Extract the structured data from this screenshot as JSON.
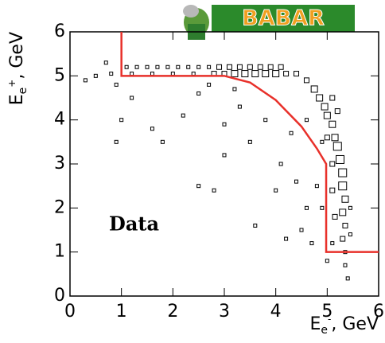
{
  "chart_data": {
    "type": "scatter",
    "logo": "BABAR",
    "annotation": "Data",
    "x_label": {
      "main": "E",
      "sub": "e",
      "sup": "-",
      "rest": ", GeV"
    },
    "y_label": {
      "main": "E",
      "sub": "e",
      "sup": "+",
      "rest": ", GeV"
    },
    "xlim": [
      0,
      6
    ],
    "ylim": [
      0,
      6
    ],
    "xticks": [
      0,
      1,
      2,
      3,
      4,
      5,
      6
    ],
    "yticks": [
      0,
      1,
      2,
      3,
      4,
      5,
      6
    ],
    "color": "#000000",
    "x": [
      1.1,
      1.3,
      1.5,
      1.7,
      1.9,
      2.1,
      2.3,
      2.5,
      2.7,
      2.9,
      3.1,
      3.3,
      3.5,
      3.7,
      3.9,
      4.1,
      0.8,
      1.2,
      1.6,
      2.0,
      2.4,
      2.8,
      3.0,
      3.2,
      3.4,
      3.6,
      3.8,
      4.0,
      4.2,
      4.4,
      0.3,
      0.5,
      0.7,
      0.9,
      1.2,
      1.0,
      0.9,
      1.6,
      1.8,
      2.2,
      2.5,
      2.5,
      2.8,
      3.0,
      3.0,
      3.3,
      3.5,
      3.6,
      3.8,
      4.0,
      4.1,
      4.2,
      4.3,
      4.4,
      4.5,
      4.6,
      4.8,
      4.7,
      4.6,
      3.2,
      2.7,
      4.6,
      4.75,
      4.85,
      4.95,
      5.0,
      5.1,
      5.15,
      5.2,
      5.25,
      5.3,
      5.3,
      5.35,
      5.3,
      5.35,
      5.3,
      5.35,
      5.35,
      5.4,
      5.1,
      5.2,
      5.0,
      5.1,
      5.1,
      5.15,
      5.1,
      5.0,
      5.45,
      5.45,
      4.9,
      4.9
    ],
    "y": [
      5.2,
      5.2,
      5.2,
      5.2,
      5.2,
      5.2,
      5.2,
      5.2,
      5.2,
      5.2,
      5.2,
      5.2,
      5.2,
      5.2,
      5.2,
      5.2,
      5.05,
      5.05,
      5.05,
      5.05,
      5.05,
      5.05,
      5.05,
      5.05,
      5.05,
      5.05,
      5.05,
      5.05,
      5.05,
      5.05,
      4.9,
      5.0,
      5.3,
      4.8,
      4.5,
      4.0,
      3.5,
      3.8,
      3.5,
      4.1,
      4.6,
      2.5,
      2.4,
      3.9,
      3.2,
      4.3,
      3.5,
      1.6,
      4.0,
      2.4,
      3.0,
      1.3,
      3.7,
      2.6,
      1.5,
      4.0,
      2.5,
      1.2,
      2.0,
      4.7,
      4.8,
      4.9,
      4.7,
      4.5,
      4.3,
      4.1,
      3.9,
      3.6,
      3.4,
      3.1,
      2.8,
      2.5,
      2.2,
      1.9,
      1.6,
      1.3,
      1.0,
      0.7,
      0.4,
      4.5,
      4.2,
      3.6,
      3.0,
      2.4,
      1.8,
      1.2,
      0.8,
      2.0,
      1.4,
      3.5,
      2.0
    ],
    "sizes": [
      1,
      1,
      1,
      1,
      1,
      1,
      1,
      1,
      1,
      2,
      2,
      2,
      2,
      2,
      2,
      2,
      1,
      1,
      1,
      1,
      1,
      2,
      2,
      3,
      3,
      3,
      3,
      3,
      2,
      2,
      1,
      1,
      1,
      1,
      1,
      1,
      1,
      1,
      1,
      1,
      1,
      1,
      1,
      1,
      1,
      1,
      1,
      1,
      1,
      1,
      1,
      1,
      1,
      1,
      1,
      1,
      1,
      1,
      1,
      1,
      1,
      2,
      3,
      3,
      3,
      3,
      3,
      3,
      4,
      4,
      4,
      4,
      3,
      3,
      2,
      2,
      1,
      1,
      1,
      2,
      2,
      2,
      2,
      2,
      2,
      1,
      1,
      1,
      1,
      1,
      1
    ],
    "cut": {
      "color": "#e8302a",
      "x": [
        1,
        1,
        3,
        3.5,
        4.0,
        4.5,
        4.8,
        4.98,
        4.98,
        6
      ],
      "y": [
        6,
        5,
        5,
        4.85,
        4.45,
        3.85,
        3.35,
        3.0,
        1,
        1
      ]
    }
  }
}
